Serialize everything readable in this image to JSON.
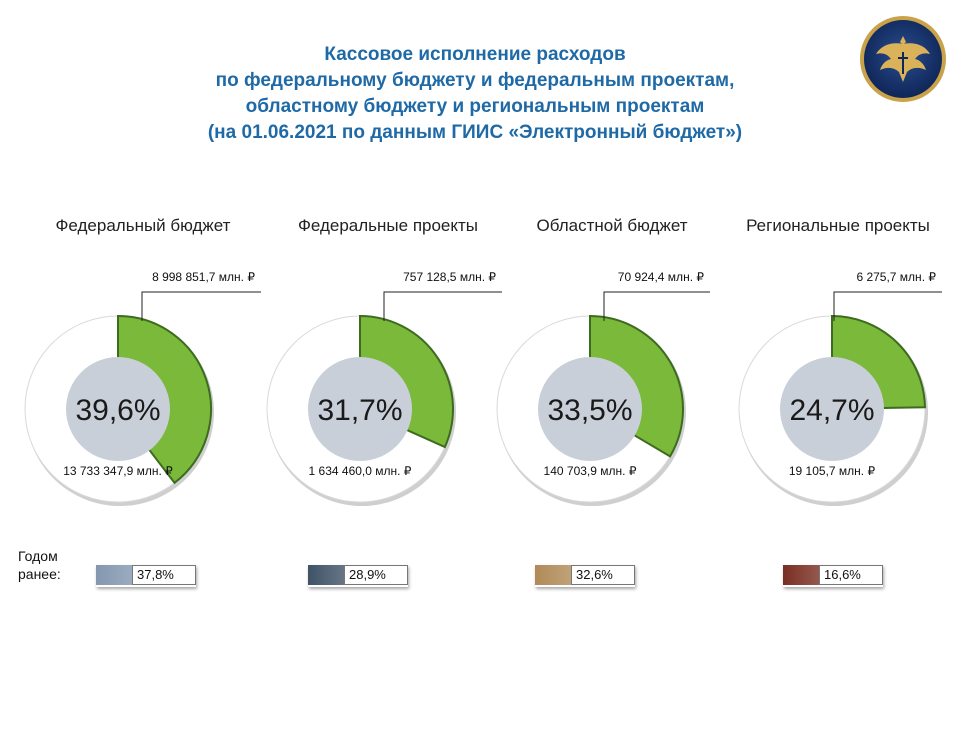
{
  "title_lines": [
    "Кассовое исполнение расходов",
    "по федеральному бюджету и федеральным проектам,",
    "областному бюджету и региональным проектам",
    "(на 01.06.2021 по данным  ГИИС  «Электронный бюджет»)"
  ],
  "emblem": {
    "icon": "double-headed-eagle-emblem"
  },
  "colors": {
    "executed": "#7ab93a",
    "remaining": "#ffffff",
    "center": "#c9cfd8",
    "title": "#1f6aa6"
  },
  "chart_data": [
    {
      "type": "pie",
      "title": "Федеральный бюджет",
      "executed_label": "8 998 851,7 млн. ₽",
      "total_label": "13 733 347,9 млн. ₽",
      "percent": 39.6,
      "percent_label": "39,6%",
      "slices": [
        {
          "value": 39.6
        },
        {
          "value": 60.4
        }
      ],
      "previous_year": {
        "percent": 37.8,
        "label": "37,8%",
        "color": "#8397af"
      }
    },
    {
      "type": "pie",
      "title": "Федеральные проекты",
      "executed_label": "757 128,5 млн. ₽",
      "total_label": "1 634 460,0 млн. ₽",
      "percent": 31.7,
      "percent_label": "31,7%",
      "slices": [
        {
          "value": 31.7
        },
        {
          "value": 68.3
        }
      ],
      "previous_year": {
        "percent": 28.9,
        "label": "28,9%",
        "color": "#3f5366"
      }
    },
    {
      "type": "pie",
      "title": "Областной бюджет",
      "executed_label": "70 924,4 млн. ₽",
      "total_label": "140 703,9 млн. ₽",
      "percent": 33.5,
      "percent_label": "33,5%",
      "slices": [
        {
          "value": 33.5
        },
        {
          "value": 66.5
        }
      ],
      "previous_year": {
        "percent": 32.6,
        "label": "32,6%",
        "color": "#b08a57"
      }
    },
    {
      "type": "pie",
      "title": "Региональные проекты",
      "executed_label": "6 275,7 млн. ₽",
      "total_label": "19 105,7 млн. ₽",
      "percent": 24.7,
      "percent_label": "24,7%",
      "slices": [
        {
          "value": 24.7
        },
        {
          "value": 75.3
        }
      ],
      "previous_year": {
        "percent": 16.6,
        "label": "16,6%",
        "color": "#7a2e22"
      }
    }
  ],
  "previous_year_caption": [
    "Годом",
    "ранее:"
  ]
}
